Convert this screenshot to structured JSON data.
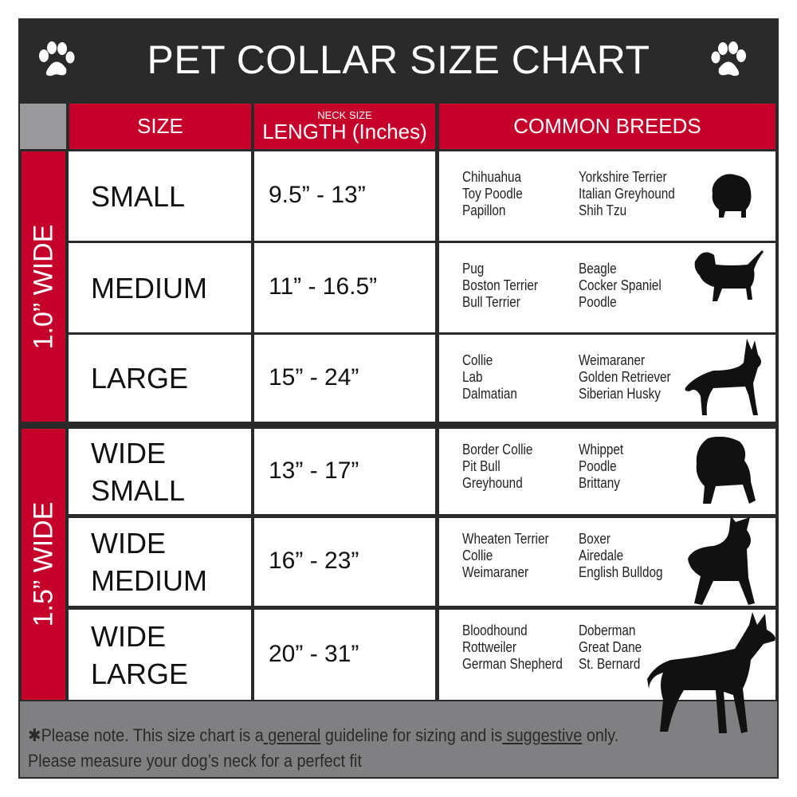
{
  "title": "PET COLLAR SIZE CHART",
  "icons": {
    "paw_left": "paw-icon",
    "paw_right": "paw-icon"
  },
  "colors": {
    "header_red": "#c4002b",
    "title_bg": "#2a2a2a",
    "footer_gray": "#808083"
  },
  "header": {
    "size": "SIZE",
    "neck_size": "NECK SIZE",
    "length": "LENGTH (Inches)",
    "breeds": "COMMON BREEDS"
  },
  "groups": [
    {
      "label": "1.0” WIDE"
    },
    {
      "label": "1.5” WIDE"
    }
  ],
  "rows": [
    {
      "size": [
        "SMALL"
      ],
      "length": "9.5” - 13”",
      "breeds_a": [
        "Chihuahua",
        "Toy Poodle",
        "Papillon"
      ],
      "breeds_b": [
        "Yorkshire Terrier",
        "Italian Greyhound",
        "Shih Tzu"
      ],
      "icon": "small-dog-icon"
    },
    {
      "size": [
        "MEDIUM"
      ],
      "length": "11” - 16.5”",
      "breeds_a": [
        "Pug",
        "Boston Terrier",
        "Bull Terrier"
      ],
      "breeds_b": [
        "Beagle",
        "Cocker Spaniel",
        "Poodle"
      ],
      "icon": "beagle-icon"
    },
    {
      "size": [
        "LARGE"
      ],
      "length": "15” - 24”",
      "breeds_a": [
        "Collie",
        "Lab",
        "Dalmatian"
      ],
      "breeds_b": [
        "Weimaraner",
        "Golden Retriever",
        "Siberian Husky"
      ],
      "icon": "husky-icon"
    },
    {
      "size": [
        "WIDE",
        "SMALL"
      ],
      "length": "13” - 17”",
      "breeds_a": [
        "Border Collie",
        "Pit Bull",
        "Greyhound"
      ],
      "breeds_b": [
        "Whippet",
        "Poodle",
        "Brittany"
      ],
      "icon": "bulldog-icon"
    },
    {
      "size": [
        "WIDE",
        "MEDIUM"
      ],
      "length": "16” - 23”",
      "breeds_a": [
        "Wheaten Terrier",
        "Collie",
        "Weimaraner"
      ],
      "breeds_b": [
        "Boxer",
        "Airedale",
        "English Bulldog"
      ],
      "icon": "pitbull-icon"
    },
    {
      "size": [
        "WIDE",
        "LARGE"
      ],
      "length": "20” - 31”",
      "breeds_a": [
        "Bloodhound",
        "Rottweiler",
        "German Shepherd"
      ],
      "breeds_b": [
        "Doberman",
        "Great Dane",
        "St. Bernard"
      ],
      "icon": "doberman-icon"
    }
  ],
  "footer": {
    "p1": "✱Please note. This size chart is a",
    "u1": " general",
    "p2": " guideline for sizing and is",
    "u2": " suggestive",
    "p3": " only.",
    "line2": "Please measure your dog’s neck for a perfect fit"
  }
}
